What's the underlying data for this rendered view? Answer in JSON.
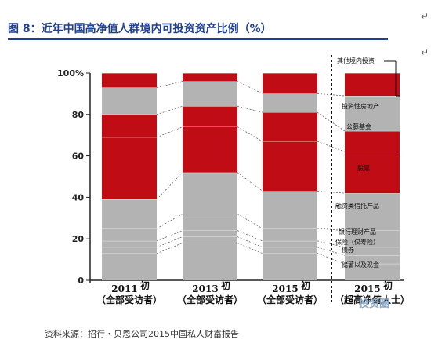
{
  "title": "图 8：近年中国高净值人群境内可投资资产比例（%）",
  "source": "资料来源：招行・贝恩公司2015中国私人财富报告",
  "watermark": "投资圈",
  "para_mark": "↵",
  "chart_data": {
    "type": "bar",
    "stacked": true,
    "categories": [
      {
        "year": "2011",
        "suffix": "初",
        "sub": "（全部受访者）"
      },
      {
        "year": "2013",
        "suffix": "初",
        "sub": "（全部受访者）"
      },
      {
        "year": "2015",
        "suffix": "初",
        "sub": "（全部受访者）"
      },
      {
        "year": "2015",
        "suffix": "初",
        "sub": "（超高净值人士）"
      }
    ],
    "y_ticks": [
      "0",
      "20",
      "40",
      "60",
      "80",
      "100%"
    ],
    "ylim": [
      0,
      100
    ],
    "grid": true,
    "series": [
      {
        "name": "储蓄以及现金",
        "color": "#b3b3b3",
        "values": [
          13,
          18,
          13,
          8
        ]
      },
      {
        "name": "债券",
        "color": "#b3b3b3",
        "values": [
          3,
          3,
          3,
          4
        ]
      },
      {
        "name": "保险（仅寿险）",
        "color": "#b3b3b3",
        "values": [
          3,
          3,
          3,
          4
        ]
      },
      {
        "name": "银行理财产品",
        "color": "#b3b3b3",
        "values": [
          6,
          8,
          6,
          8
        ]
      },
      {
        "name": "融资类信托产品",
        "color": "#b3b3b3",
        "values": [
          14,
          20,
          18,
          18
        ]
      },
      {
        "name": "股票",
        "color": "#c00d15",
        "values": [
          30,
          22,
          24,
          20
        ]
      },
      {
        "name": "公募基金",
        "color": "#c00d15",
        "values": [
          11,
          10,
          14,
          10
        ]
      },
      {
        "name": "投资性房地产",
        "color": "#b3b3b3",
        "values": [
          13,
          12,
          9,
          17
        ]
      },
      {
        "name": "其他境内投资",
        "color": "#c00d15",
        "values": [
          7,
          4,
          10,
          11
        ]
      }
    ]
  }
}
